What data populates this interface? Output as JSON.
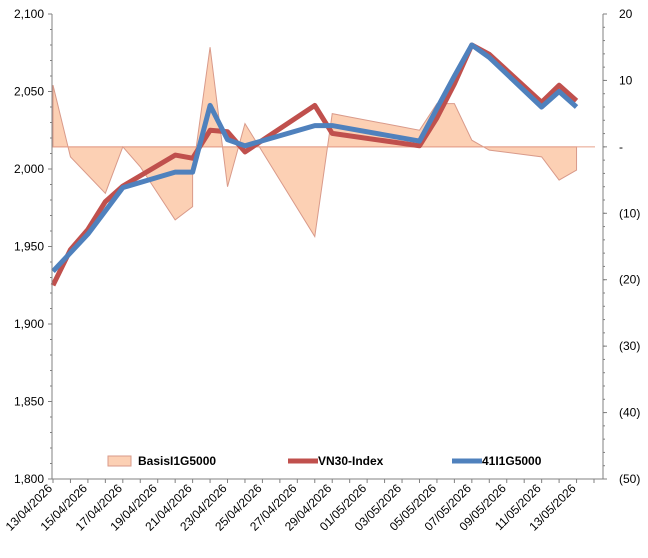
{
  "chart_data": {
    "type": "line",
    "dates": [
      "13/04/2026",
      "14/04/2026",
      "15/04/2026",
      "16/04/2026",
      "17/04/2026",
      "18/04/2026",
      "19/04/2026",
      "20/04/2026",
      "21/04/2026",
      "22/04/2026",
      "23/04/2026",
      "24/04/2026",
      "25/04/2026",
      "26/04/2026",
      "27/04/2026",
      "28/04/2026",
      "29/04/2026",
      "30/04/2026",
      "01/05/2026",
      "02/05/2026",
      "03/05/2026",
      "04/05/2026",
      "05/05/2026",
      "06/05/2026",
      "07/05/2026",
      "08/05/2026",
      "09/05/2026",
      "10/05/2026",
      "11/05/2026",
      "12/05/2026",
      "13/05/2026",
      "14/05/2026"
    ],
    "xtick_labels": [
      "13/04/2026",
      "15/04/2026",
      "17/04/2026",
      "19/04/2026",
      "21/04/2026",
      "23/04/2026",
      "25/04/2026",
      "27/04/2026",
      "29/04/2026",
      "01/05/2026",
      "03/05/2026",
      "05/05/2026",
      "07/05/2026",
      "09/05/2026",
      "11/05/2026",
      "13/05/2026"
    ],
    "left_axis": {
      "ylim": [
        1800,
        2100
      ],
      "ticks": [
        "1,800",
        "1,850",
        "1,900",
        "1,950",
        "2,000",
        "2,050",
        "2,100"
      ],
      "values": [
        1800,
        1850,
        1900,
        1950,
        2000,
        2050,
        2100
      ]
    },
    "right_axis": {
      "ylim": [
        -50,
        20
      ],
      "ticks": [
        "(50)",
        "(40)",
        "(30)",
        "(20)",
        "(10)",
        "-",
        "10",
        "20"
      ],
      "values": [
        -50,
        -40,
        -30,
        -20,
        -10,
        0,
        10,
        20
      ]
    },
    "series": [
      {
        "name": "BasisI1G5000",
        "kind": "area",
        "axis": "right",
        "color": "#fcd0b4",
        "stroke": "#d99a8a",
        "points": [
          [
            "13/04/2026",
            9
          ],
          [
            "13/04/2026",
            9.3
          ],
          [
            "14/04/2026",
            -1.5
          ],
          [
            "16/04/2026",
            -7
          ],
          [
            "17/04/2026",
            0
          ],
          [
            "18/04/2026",
            -3
          ],
          [
            "20/04/2026",
            -11
          ],
          [
            "21/04/2026",
            -9
          ],
          [
            "21/04/2026",
            -4
          ],
          [
            "22/04/2026",
            15
          ],
          [
            "23/04/2026",
            -6
          ],
          [
            "24/04/2026",
            3.5
          ],
          [
            "28/04/2026",
            -13.5
          ],
          [
            "29/04/2026",
            5
          ],
          [
            "30/04/2026",
            4.5
          ],
          [
            "03/05/2026",
            3
          ],
          [
            "04/05/2026",
            2.5
          ],
          [
            "05/05/2026",
            6.5
          ],
          [
            "06/05/2026",
            6.5
          ],
          [
            "07/05/2026",
            1
          ],
          [
            "08/05/2026",
            -0.5
          ],
          [
            "11/05/2026",
            -1.5
          ],
          [
            "12/05/2026",
            -5
          ],
          [
            "13/05/2026",
            -3.5
          ]
        ]
      },
      {
        "name": "VN30-Index",
        "kind": "line",
        "axis": "left",
        "color": "#c0504d",
        "points": [
          [
            "13/04/2026",
            1925
          ],
          [
            "14/04/2026",
            1948
          ],
          [
            "15/04/2026",
            1961
          ],
          [
            "16/04/2026",
            1979
          ],
          [
            "17/04/2026",
            1989
          ],
          [
            "20/04/2026",
            2009
          ],
          [
            "21/04/2026",
            2007
          ],
          [
            "22/04/2026",
            2025
          ],
          [
            "23/04/2026",
            2024
          ],
          [
            "24/04/2026",
            2011
          ],
          [
            "28/04/2026",
            2041
          ],
          [
            "29/04/2026",
            2023
          ],
          [
            "04/05/2026",
            2015
          ],
          [
            "05/05/2026",
            2033
          ],
          [
            "06/05/2026",
            2055
          ],
          [
            "07/05/2026",
            2080
          ],
          [
            "08/05/2026",
            2074
          ],
          [
            "11/05/2026",
            2043
          ],
          [
            "12/05/2026",
            2054
          ],
          [
            "13/05/2026",
            2044
          ]
        ]
      },
      {
        "name": "41I1G5000",
        "kind": "line",
        "axis": "left",
        "color": "#4f81bd",
        "points": [
          [
            "13/04/2026",
            1934
          ],
          [
            "14/04/2026",
            1946
          ],
          [
            "15/04/2026",
            1958
          ],
          [
            "16/04/2026",
            1973
          ],
          [
            "17/04/2026",
            1988
          ],
          [
            "20/04/2026",
            1998
          ],
          [
            "21/04/2026",
            1998
          ],
          [
            "22/04/2026",
            2041
          ],
          [
            "23/04/2026",
            2019
          ],
          [
            "24/04/2026",
            2015
          ],
          [
            "28/04/2026",
            2028
          ],
          [
            "29/04/2026",
            2028
          ],
          [
            "04/05/2026",
            2018
          ],
          [
            "05/05/2026",
            2039
          ],
          [
            "06/05/2026",
            2060
          ],
          [
            "07/05/2026",
            2080
          ],
          [
            "08/05/2026",
            2072
          ],
          [
            "11/05/2026",
            2040
          ],
          [
            "12/05/2026",
            2050
          ],
          [
            "13/05/2026",
            2040
          ]
        ]
      }
    ],
    "legend": {
      "placement": "bottom"
    },
    "grid": false
  }
}
